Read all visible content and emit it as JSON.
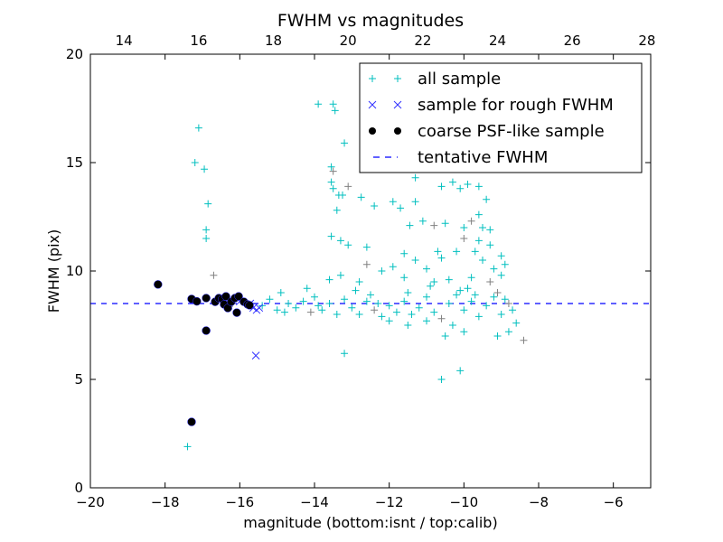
{
  "chart_data": {
    "type": "scatter",
    "title": "FWHM vs magnitudes",
    "xlabel": "magnitude (bottom:isnt / top:calib)",
    "ylabel": "FWHM (pix)",
    "xlim": [
      -20,
      -5
    ],
    "ylim": [
      0,
      20
    ],
    "x_ticks": [
      "−20",
      "−18",
      "−16",
      "−14",
      "−12",
      "−10",
      "−8",
      "−6"
    ],
    "x_tick_values": [
      -20,
      -18,
      -16,
      -14,
      -12,
      -10,
      -8,
      -6
    ],
    "y_ticks": [
      "0",
      "5",
      "10",
      "15",
      "20"
    ],
    "y_tick_values": [
      0,
      5,
      10,
      15,
      20
    ],
    "top_axis": {
      "offset": 33.1,
      "ticks": [
        "14",
        "16",
        "18",
        "20",
        "22",
        "24",
        "26",
        "28"
      ],
      "tick_values": [
        14,
        16,
        18,
        20,
        22,
        24,
        26,
        28
      ]
    },
    "legend_position": "top-right",
    "tentative_fwhm": 8.5,
    "series": [
      {
        "name": "all sample",
        "marker": "plus",
        "color": "#00bfbf",
        "points": [
          [
            -17.2,
            15.0
          ],
          [
            -16.95,
            14.7
          ],
          [
            -16.9,
            11.9
          ],
          [
            -16.85,
            13.1
          ],
          [
            -16.7,
            9.8
          ],
          [
            -17.1,
            16.6
          ],
          [
            -16.9,
            11.5
          ],
          [
            -17.4,
            1.9
          ],
          [
            -13.9,
            17.7
          ],
          [
            -13.5,
            17.7
          ],
          [
            -13.45,
            17.4
          ],
          [
            -13.2,
            15.9
          ],
          [
            -13.55,
            14.8
          ],
          [
            -13.5,
            14.6
          ],
          [
            -13.55,
            14.1
          ],
          [
            -13.5,
            13.8
          ],
          [
            -13.35,
            13.5
          ],
          [
            -13.25,
            13.5
          ],
          [
            -13.4,
            12.8
          ],
          [
            -13.55,
            11.6
          ],
          [
            -13.3,
            11.4
          ],
          [
            -13.1,
            11.2
          ],
          [
            -13.1,
            13.9
          ],
          [
            -12.75,
            13.4
          ],
          [
            -12.4,
            13.0
          ],
          [
            -11.7,
            12.9
          ],
          [
            -11.9,
            13.2
          ],
          [
            -11.3,
            14.3
          ],
          [
            -11.3,
            13.2
          ],
          [
            -11.45,
            12.1
          ],
          [
            -11.1,
            12.3
          ],
          [
            -10.8,
            12.1
          ],
          [
            -10.5,
            12.2
          ],
          [
            -10.6,
            13.9
          ],
          [
            -10.3,
            14.1
          ],
          [
            -10.1,
            13.8
          ],
          [
            -9.9,
            14.0
          ],
          [
            -9.6,
            13.9
          ],
          [
            -9.4,
            13.3
          ],
          [
            -9.6,
            12.6
          ],
          [
            -9.8,
            12.3
          ],
          [
            -10.0,
            12.0
          ],
          [
            -9.5,
            12.0
          ],
          [
            -9.3,
            11.2
          ],
          [
            -9.0,
            10.7
          ],
          [
            -8.9,
            10.3
          ],
          [
            -9.2,
            10.1
          ],
          [
            -9.5,
            10.5
          ],
          [
            -9.7,
            10.9
          ],
          [
            -10.0,
            11.5
          ],
          [
            -10.2,
            10.9
          ],
          [
            -10.6,
            10.6
          ],
          [
            -10.7,
            10.9
          ],
          [
            -11.0,
            10.1
          ],
          [
            -11.3,
            10.5
          ],
          [
            -11.6,
            10.8
          ],
          [
            -11.9,
            10.2
          ],
          [
            -12.2,
            10.0
          ],
          [
            -12.6,
            10.3
          ],
          [
            -12.6,
            11.1
          ],
          [
            -13.6,
            9.6
          ],
          [
            -13.3,
            9.8
          ],
          [
            -12.8,
            9.5
          ],
          [
            -11.6,
            9.7
          ],
          [
            -10.8,
            9.5
          ],
          [
            -10.4,
            9.6
          ],
          [
            -9.8,
            9.7
          ],
          [
            -9.1,
            9.0
          ],
          [
            -13.2,
            6.2
          ],
          [
            -10.1,
            5.4
          ],
          [
            -10.6,
            5.0
          ],
          [
            -9.6,
            11.4
          ],
          [
            -9.3,
            11.9
          ],
          [
            -9.9,
            9.2
          ],
          [
            -8.6,
            7.6
          ],
          [
            -8.8,
            7.2
          ],
          [
            -8.4,
            6.8
          ],
          [
            -9.1,
            7.0
          ],
          [
            -10.0,
            7.2
          ],
          [
            -10.5,
            7.0
          ],
          [
            -10.3,
            7.5
          ],
          [
            -11.0,
            7.7
          ],
          [
            -11.5,
            7.5
          ],
          [
            -12.0,
            7.7
          ],
          [
            -16.5,
            8.7
          ],
          [
            -16.2,
            8.5
          ],
          [
            -15.9,
            8.6
          ],
          [
            -15.4,
            8.4
          ],
          [
            -15.2,
            8.7
          ],
          [
            -15.0,
            8.2
          ],
          [
            -14.9,
            9.0
          ],
          [
            -14.7,
            8.5
          ],
          [
            -14.5,
            8.3
          ],
          [
            -14.3,
            8.6
          ],
          [
            -14.1,
            8.1
          ],
          [
            -14.0,
            8.8
          ],
          [
            -13.8,
            8.2
          ],
          [
            -13.6,
            8.5
          ],
          [
            -13.4,
            8.0
          ],
          [
            -13.2,
            8.7
          ],
          [
            -13.0,
            8.3
          ],
          [
            -12.8,
            8.0
          ],
          [
            -12.6,
            8.6
          ],
          [
            -12.4,
            8.2
          ],
          [
            -12.2,
            7.9
          ],
          [
            -12.0,
            8.4
          ],
          [
            -11.8,
            8.1
          ],
          [
            -11.6,
            8.6
          ],
          [
            -11.4,
            8.0
          ],
          [
            -11.2,
            8.3
          ],
          [
            -11.0,
            8.8
          ],
          [
            -10.8,
            8.1
          ],
          [
            -10.6,
            7.8
          ],
          [
            -10.4,
            8.5
          ],
          [
            -10.2,
            8.9
          ],
          [
            -10.0,
            8.2
          ],
          [
            -9.8,
            8.6
          ],
          [
            -9.6,
            7.9
          ],
          [
            -9.4,
            8.4
          ],
          [
            -9.2,
            8.8
          ],
          [
            -9.0,
            8.0
          ],
          [
            -8.8,
            8.5
          ],
          [
            -8.7,
            8.2
          ],
          [
            -14.8,
            8.1
          ],
          [
            -14.2,
            9.2
          ],
          [
            -12.9,
            9.1
          ],
          [
            -11.5,
            9.0
          ],
          [
            -10.9,
            9.3
          ],
          [
            -10.1,
            9.1
          ],
          [
            -9.7,
            8.9
          ],
          [
            -9.3,
            9.5
          ],
          [
            -9.0,
            9.8
          ],
          [
            -8.9,
            8.7
          ],
          [
            -12.5,
            8.9
          ],
          [
            -13.9,
            8.4
          ],
          [
            -12.3,
            8.5
          ]
        ]
      },
      {
        "name": "sample for rough FWHM",
        "marker": "x",
        "color": "#3333ff",
        "points": [
          [
            -15.72,
            8.5
          ],
          [
            -15.64,
            8.3
          ],
          [
            -15.55,
            8.2
          ],
          [
            -15.48,
            8.3
          ],
          [
            -15.57,
            6.1
          ],
          [
            -16.0,
            8.6
          ],
          [
            -16.3,
            8.4
          ]
        ]
      },
      {
        "name": "coarse PSF-like sample",
        "marker": "circle",
        "color": "#000000",
        "points": [
          [
            -18.19,
            9.38
          ],
          [
            -17.29,
            8.71
          ],
          [
            -17.15,
            8.6
          ],
          [
            -16.9,
            8.75
          ],
          [
            -16.9,
            7.25
          ],
          [
            -17.29,
            3.04
          ],
          [
            -16.66,
            8.58
          ],
          [
            -16.56,
            8.75
          ],
          [
            -16.47,
            8.71
          ],
          [
            -16.42,
            8.46
          ],
          [
            -16.37,
            8.83
          ],
          [
            -16.32,
            8.29
          ],
          [
            -16.23,
            8.58
          ],
          [
            -16.13,
            8.75
          ],
          [
            -16.08,
            8.08
          ],
          [
            -16.03,
            8.83
          ],
          [
            -15.89,
            8.58
          ],
          [
            -15.79,
            8.46
          ],
          [
            -15.74,
            8.42
          ]
        ]
      },
      {
        "name": "tentative FWHM",
        "marker": "dashed-line",
        "color": "#0000ff"
      }
    ]
  }
}
